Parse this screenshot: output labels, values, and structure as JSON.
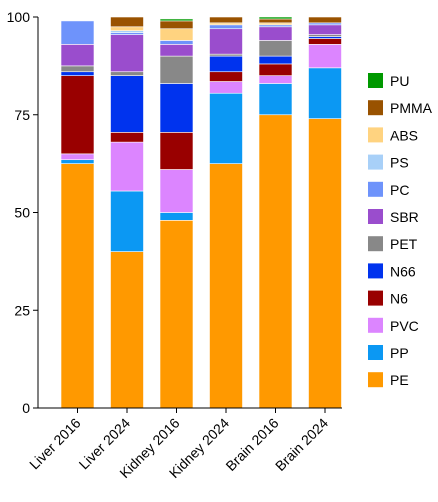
{
  "chart_data": {
    "type": "bar",
    "stacked": true,
    "categories": [
      "Liver 2016",
      "Liver 2024",
      "Kidney 2016",
      "Kidney 2024",
      "Brain 2016",
      "Brain 2024"
    ],
    "ylim": [
      0,
      100
    ],
    "yticks": [
      0,
      25,
      50,
      75,
      100
    ],
    "legend_position": "right",
    "grid": false,
    "series": [
      {
        "name": "PE",
        "color": "#ff9900",
        "values": [
          62.5,
          40.0,
          48.0,
          62.5,
          75.0,
          74.0
        ]
      },
      {
        "name": "PP",
        "color": "#0b98f3",
        "values": [
          1.0,
          15.5,
          2.0,
          18.0,
          8.0,
          13.0
        ]
      },
      {
        "name": "PVC",
        "color": "#dc85ff",
        "values": [
          1.5,
          12.5,
          11.0,
          3.0,
          2.0,
          6.0
        ]
      },
      {
        "name": "N6",
        "color": "#990000",
        "values": [
          20.0,
          2.5,
          9.5,
          2.5,
          3.0,
          1.5
        ]
      },
      {
        "name": "N66",
        "color": "#0033ee",
        "values": [
          1.0,
          14.5,
          12.5,
          4.0,
          2.0,
          0.5
        ]
      },
      {
        "name": "PET",
        "color": "#888888",
        "values": [
          1.5,
          1.0,
          7.0,
          0.5,
          4.0,
          0.5
        ]
      },
      {
        "name": "SBR",
        "color": "#9a4dcd",
        "values": [
          5.5,
          9.5,
          3.0,
          6.5,
          3.5,
          2.5
        ]
      },
      {
        "name": "PC",
        "color": "#6e93fb",
        "values": [
          6.0,
          0.5,
          1.0,
          1.0,
          0.5,
          0.5
        ]
      },
      {
        "name": "PS",
        "color": "#a8d0f8",
        "values": [
          0.0,
          0.5,
          0.0,
          0.0,
          0.0,
          0.0
        ]
      },
      {
        "name": "ABS",
        "color": "#ffd380",
        "values": [
          0.0,
          1.0,
          3.0,
          0.5,
          0.5,
          0.0
        ]
      },
      {
        "name": "PMMA",
        "color": "#995200",
        "values": [
          0.0,
          2.5,
          2.0,
          1.5,
          1.0,
          1.5
        ]
      },
      {
        "name": "PU",
        "color": "#009900",
        "values": [
          0.0,
          0.0,
          0.5,
          0.0,
          0.5,
          0.0
        ]
      }
    ],
    "legend_order": [
      "PU",
      "PMMA",
      "ABS",
      "PS",
      "PC",
      "SBR",
      "PET",
      "N66",
      "N6",
      "PVC",
      "PP",
      "PE"
    ]
  }
}
